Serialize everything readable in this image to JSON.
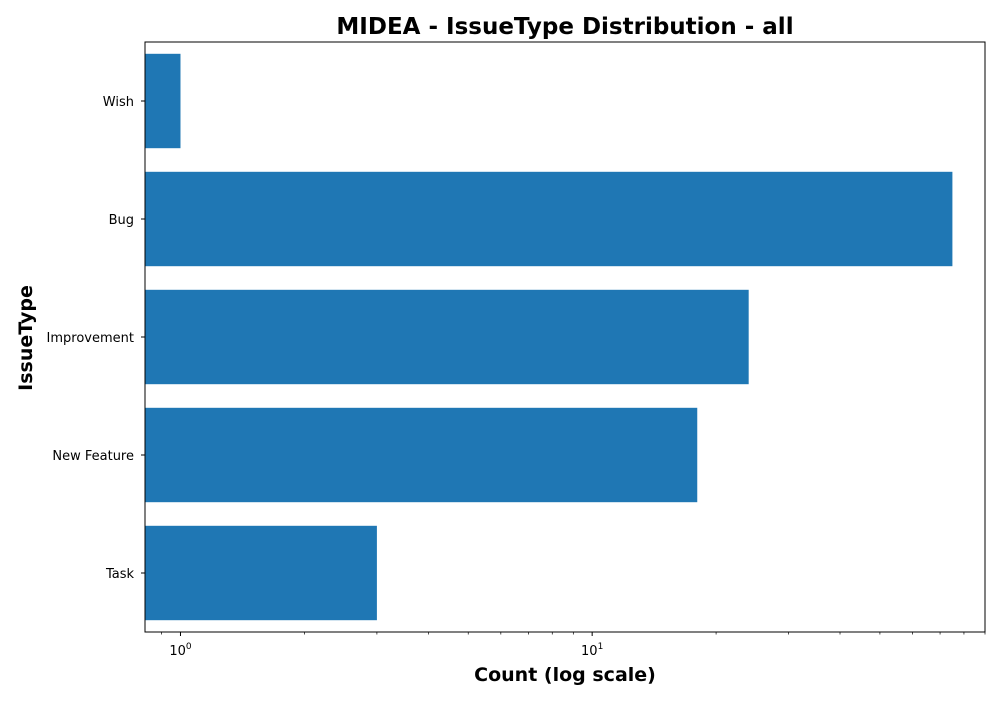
{
  "chart_data": {
    "type": "bar",
    "orientation": "horizontal",
    "title": "MIDEA - IssueType Distribution - all",
    "xlabel": "Count (log scale)",
    "ylabel": "IssueType",
    "x_scale": "log",
    "x_ticks": [
      {
        "value": 1,
        "base": "10",
        "exp": "0"
      },
      {
        "value": 10,
        "base": "10",
        "exp": "1"
      }
    ],
    "xlim": [
      0.82,
      90
    ],
    "categories": [
      "Wish",
      "Bug",
      "Improvement",
      "New Feature",
      "Task"
    ],
    "values": [
      1,
      75,
      24,
      18,
      3
    ],
    "bar_color": "#1f77b4",
    "grid": false,
    "legend": "none"
  }
}
